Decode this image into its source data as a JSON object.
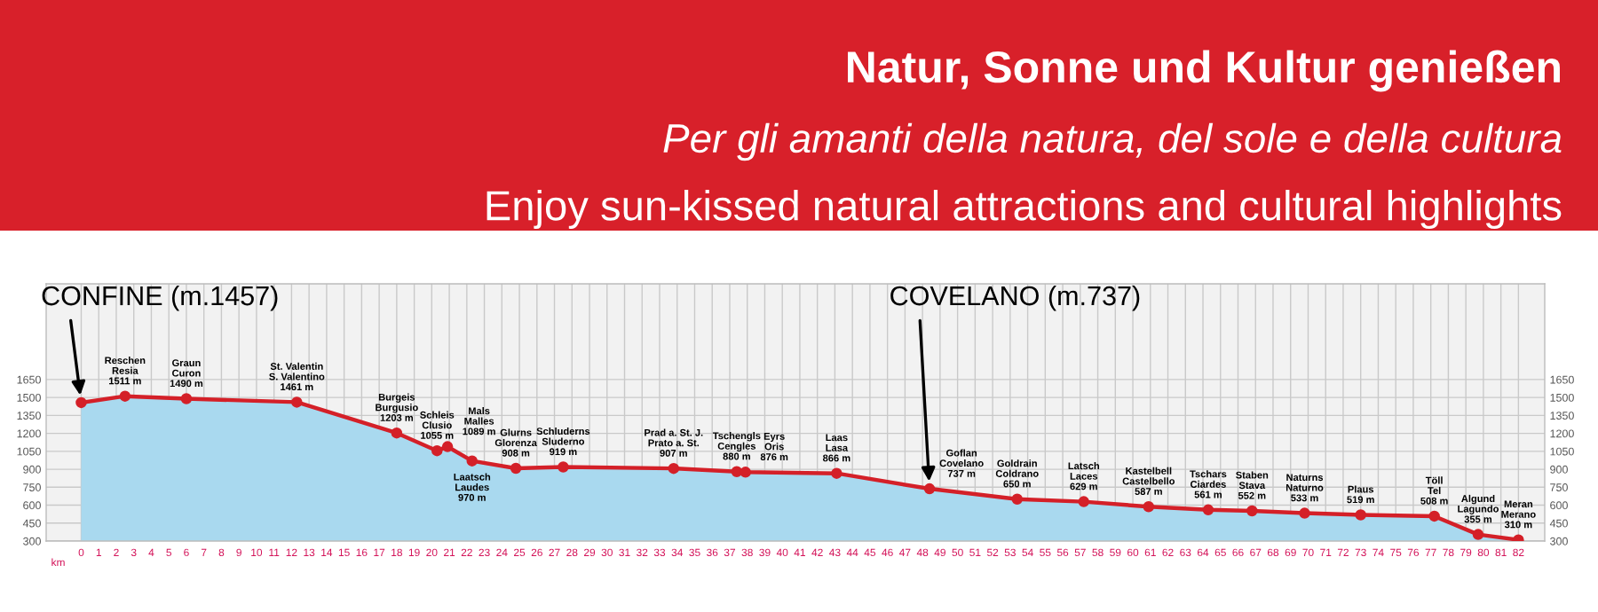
{
  "chart_data": {
    "type": "area",
    "title": "Natur, Sonne und Kultur genießen",
    "subtitle": "Per gli amanti della natura, del sole e della cultura",
    "annotations": [
      "Enjoy sun-kissed natural attractions and cultural highlights",
      {
        "text": "CONFINE (m.1457)",
        "x": 0,
        "y": 1457
      },
      {
        "text": "COVELANO (m.737)",
        "x": 48.4,
        "y": 737
      }
    ],
    "xlabel": "km",
    "series": [
      {
        "color": "#d42028",
        "x": [
          0,
          2.5,
          6.0,
          12.3,
          18.0,
          20.3,
          20.9,
          22.3,
          24.8,
          27.5,
          33.8,
          37.4,
          37.9,
          43.1,
          48.4,
          53.4,
          57.2,
          60.9,
          64.3,
          66.8,
          69.8,
          73.0,
          77.2,
          79.7,
          82
        ],
        "values": [
          1457,
          1511,
          1490,
          1461,
          1203,
          1055,
          1089,
          970,
          908,
          919,
          907,
          880,
          876,
          866,
          737,
          650,
          629,
          587,
          561,
          552,
          533,
          519,
          508,
          355,
          310
        ],
        "value_labels": [
          null,
          "Reschen\nResia\n1511 m",
          "Graun\nCuron\n1490 m",
          "St. Valentin\nS. Valentino\n1461 m",
          "Burgeis\nBurgusio\n1203 m",
          "Schleis\nClusio\n1055 m",
          "Mals\nMalles\n1089 m",
          "Laatsch\nLaudes\n970 m",
          "Glurns\nGlorenza\n908 m",
          "Schluderns\nSluderno\n919 m",
          "Prad a. St. J.\nPrato a. St.\n907 m",
          "Tschengls\nCengles\n880 m",
          "Eyrs\nOris\n876 m",
          "Laas\nLasa\n866 m",
          "Goflan\nCovelano\n737 m",
          "Goldrain\nColdrano\n650 m",
          "Latsch\nLaces\n629 m",
          "Kastelbell\nCastelbello\n587 m",
          "Tschars\nCiardes\n561 m",
          "Staben\nStava\n552 m",
          "Naturns\nNaturno\n533 m",
          "Plaus\n519 m",
          "Töll\nTel\n508 m",
          "Algund\nLagundo\n355 m",
          "Meran\nMerano\n310 m"
        ]
      }
    ],
    "marker": "circle",
    "xlim": [
      -2,
      83.5
    ],
    "xticks": [
      0,
      1,
      2,
      3,
      4,
      5,
      6,
      7,
      8,
      9,
      10,
      11,
      12,
      13,
      14,
      15,
      16,
      17,
      18,
      19,
      20,
      21,
      22,
      23,
      24,
      25,
      26,
      27,
      28,
      29,
      30,
      31,
      32,
      33,
      34,
      35,
      36,
      37,
      38,
      39,
      40,
      41,
      42,
      43,
      44,
      45,
      46,
      47,
      48,
      49,
      50,
      51,
      52,
      53,
      54,
      55,
      56,
      57,
      58,
      59,
      60,
      61,
      62,
      63,
      64,
      65,
      66,
      67,
      68,
      69,
      70,
      71,
      72,
      73,
      74,
      75,
      76,
      77,
      78,
      79,
      80,
      81,
      82
    ],
    "ylim": [
      300,
      2450
    ],
    "yticks": [
      300,
      450,
      600,
      750,
      900,
      1050,
      1200,
      1350,
      1500,
      1650
    ],
    "y2lim": [
      300,
      2450
    ],
    "y2ticks": [
      300,
      450,
      600,
      750,
      900,
      1050,
      1200,
      1350,
      1500,
      1650
    ],
    "grid": true
  }
}
